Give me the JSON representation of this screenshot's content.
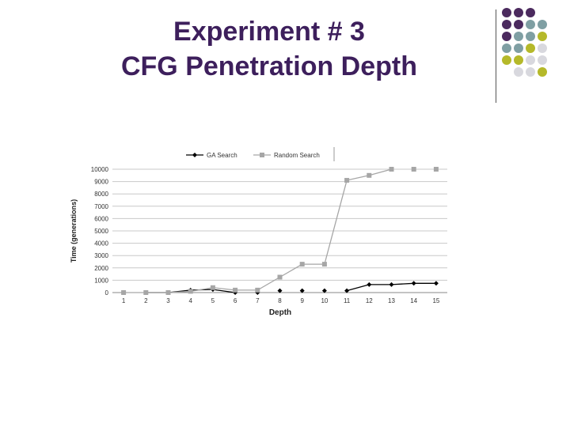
{
  "slide": {
    "title_line1": "Experiment # 3",
    "title_line2": "CFG Penetration Depth"
  },
  "decoration": {
    "dot_colors": {
      "purple": "#4b2a5e",
      "teal": "#7f9fa3",
      "olive": "#b5b92a",
      "gray": "#d8d8de"
    },
    "dot_grid": [
      [
        "purple",
        "purple",
        "purple",
        null
      ],
      [
        "purple",
        "purple",
        "teal",
        "teal"
      ],
      [
        "purple",
        "teal",
        "teal",
        "olive"
      ],
      [
        "teal",
        "teal",
        "olive",
        "gray"
      ],
      [
        "olive",
        "olive",
        "gray",
        "gray"
      ],
      [
        null,
        "gray",
        "gray",
        "olive"
      ]
    ]
  },
  "chart_data": {
    "type": "line",
    "xlabel": "Depth",
    "ylabel": "Time (generations)",
    "categories": [
      "1",
      "2",
      "3",
      "4",
      "5",
      "6",
      "7",
      "8",
      "9",
      "10",
      "11",
      "12",
      "13",
      "14",
      "15"
    ],
    "ylim": [
      0,
      10000
    ],
    "yticks": [
      "0",
      "1000",
      "2000",
      "3000",
      "4000",
      "5000",
      "6000",
      "7000",
      "8000",
      "9000",
      "10000"
    ],
    "grid": true,
    "legend_position": "top",
    "series": [
      {
        "name": "GA Search",
        "color": "#000000",
        "marker": "diamond",
        "values": [
          0,
          0,
          0,
          200,
          250,
          0,
          0,
          150,
          150,
          150,
          150,
          650,
          650,
          750,
          750
        ],
        "segments": [
          [
            1,
            5
          ],
          [
            10,
            14
          ]
        ]
      },
      {
        "name": "Random Search",
        "color": "#a6a6a6",
        "marker": "square",
        "values": [
          0,
          0,
          0,
          100,
          400,
          200,
          200,
          1250,
          2300,
          2300,
          9100,
          9500,
          10000,
          10000,
          10000
        ],
        "segments": [
          [
            0,
            12
          ]
        ]
      }
    ]
  }
}
